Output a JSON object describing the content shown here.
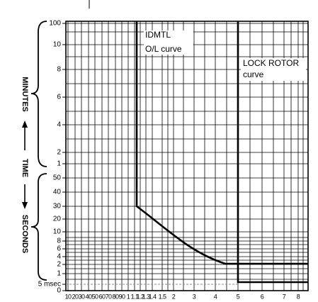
{
  "axis_title": {
    "top": "MINUTES",
    "middle": "TIME",
    "bottom": "SECONDS"
  },
  "y_axis": {
    "labels": [
      "100",
      "10",
      "8",
      "6",
      "4",
      "2",
      "1",
      "50",
      "40",
      "30",
      "20",
      "10",
      "8",
      "6",
      "4",
      "2",
      "1",
      "5 msec",
      "0"
    ]
  },
  "x_axis": {
    "labels": [
      "10",
      "20",
      "30",
      "40",
      "50",
      "60",
      "70",
      "80",
      "90",
      "1",
      "1.1",
      "1.2",
      "1.3",
      "1.4",
      "1.5",
      "2",
      "3",
      "4",
      "5",
      "6",
      "7",
      "8"
    ]
  },
  "annotations": [
    "IDMTL",
    "O/L curve",
    "LOCK ROTOR",
    "curve"
  ]
}
